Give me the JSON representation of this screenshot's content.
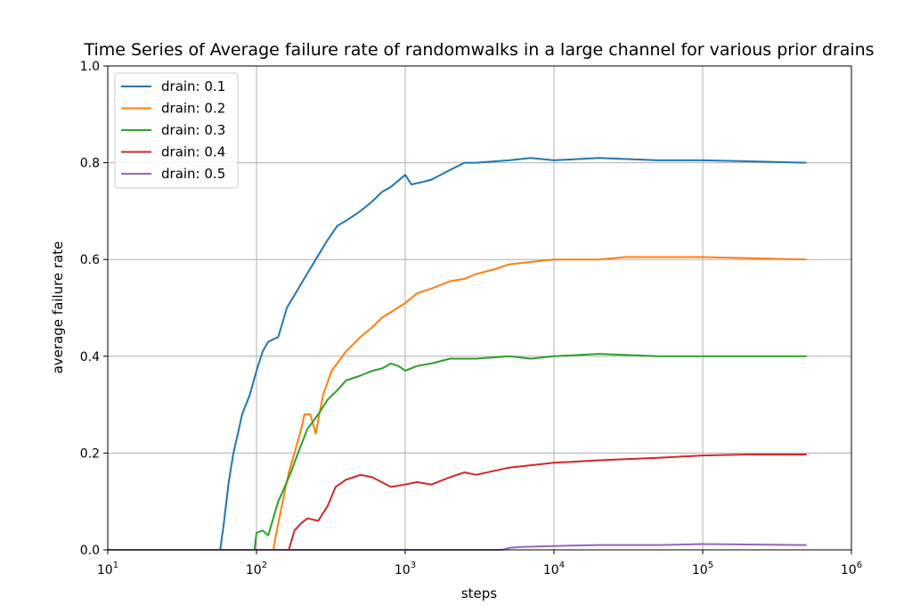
{
  "chart_data": {
    "type": "line",
    "title": "Time Series of Average failure rate of randomwalks in a large channel for various prior drains",
    "xlabel": "steps",
    "ylabel": "average failure rate",
    "xscale": "log",
    "xlim": [
      10,
      1000000
    ],
    "ylim": [
      0.0,
      1.0
    ],
    "grid": true,
    "legend_position": "top-left",
    "x_ticks": [
      {
        "value": 10,
        "base": "10",
        "exp": "1"
      },
      {
        "value": 100,
        "base": "10",
        "exp": "2"
      },
      {
        "value": 1000,
        "base": "10",
        "exp": "3"
      },
      {
        "value": 10000,
        "base": "10",
        "exp": "4"
      },
      {
        "value": 100000,
        "base": "10",
        "exp": "5"
      },
      {
        "value": 1000000,
        "base": "10",
        "exp": "6"
      }
    ],
    "y_ticks": [
      {
        "value": 0.0,
        "label": "0.0"
      },
      {
        "value": 0.2,
        "label": "0.2"
      },
      {
        "value": 0.4,
        "label": "0.4"
      },
      {
        "value": 0.6,
        "label": "0.6"
      },
      {
        "value": 0.8,
        "label": "0.8"
      },
      {
        "value": 1.0,
        "label": "1.0"
      }
    ],
    "series": [
      {
        "name": "drain: 0.1",
        "color": "#1f77b4",
        "points": [
          [
            10,
            0
          ],
          [
            57,
            0
          ],
          [
            60,
            0.05
          ],
          [
            65,
            0.14
          ],
          [
            70,
            0.2
          ],
          [
            75,
            0.24
          ],
          [
            80,
            0.28
          ],
          [
            90,
            0.32
          ],
          [
            100,
            0.37
          ],
          [
            110,
            0.41
          ],
          [
            120,
            0.43
          ],
          [
            140,
            0.44
          ],
          [
            160,
            0.5
          ],
          [
            200,
            0.55
          ],
          [
            250,
            0.6
          ],
          [
            300,
            0.64
          ],
          [
            350,
            0.67
          ],
          [
            400,
            0.68
          ],
          [
            500,
            0.7
          ],
          [
            600,
            0.72
          ],
          [
            700,
            0.74
          ],
          [
            800,
            0.75
          ],
          [
            1000,
            0.775
          ],
          [
            1100,
            0.755
          ],
          [
            1300,
            0.76
          ],
          [
            1500,
            0.765
          ],
          [
            2000,
            0.785
          ],
          [
            2500,
            0.8
          ],
          [
            3000,
            0.8
          ],
          [
            5000,
            0.805
          ],
          [
            7000,
            0.81
          ],
          [
            10000,
            0.805
          ],
          [
            20000,
            0.81
          ],
          [
            50000,
            0.805
          ],
          [
            100000,
            0.805
          ],
          [
            200000,
            0.803
          ],
          [
            500000,
            0.8
          ]
        ]
      },
      {
        "name": "drain: 0.2",
        "color": "#ff7f0e",
        "points": [
          [
            10,
            0
          ],
          [
            130,
            0
          ],
          [
            135,
            0.03
          ],
          [
            150,
            0.1
          ],
          [
            165,
            0.16
          ],
          [
            180,
            0.2
          ],
          [
            200,
            0.25
          ],
          [
            210,
            0.28
          ],
          [
            230,
            0.28
          ],
          [
            250,
            0.24
          ],
          [
            280,
            0.32
          ],
          [
            320,
            0.37
          ],
          [
            400,
            0.41
          ],
          [
            500,
            0.44
          ],
          [
            600,
            0.46
          ],
          [
            700,
            0.48
          ],
          [
            1000,
            0.51
          ],
          [
            1200,
            0.53
          ],
          [
            1500,
            0.54
          ],
          [
            2000,
            0.555
          ],
          [
            2500,
            0.56
          ],
          [
            3000,
            0.57
          ],
          [
            4000,
            0.58
          ],
          [
            5000,
            0.59
          ],
          [
            7000,
            0.595
          ],
          [
            10000,
            0.6
          ],
          [
            20000,
            0.6
          ],
          [
            30000,
            0.605
          ],
          [
            50000,
            0.605
          ],
          [
            100000,
            0.605
          ],
          [
            200000,
            0.603
          ],
          [
            500000,
            0.6
          ]
        ]
      },
      {
        "name": "drain: 0.3",
        "color": "#2ca02c",
        "points": [
          [
            10,
            0
          ],
          [
            97,
            0
          ],
          [
            100,
            0.035
          ],
          [
            110,
            0.04
          ],
          [
            120,
            0.03
          ],
          [
            140,
            0.1
          ],
          [
            150,
            0.12
          ],
          [
            170,
            0.16
          ],
          [
            190,
            0.2
          ],
          [
            220,
            0.25
          ],
          [
            260,
            0.28
          ],
          [
            300,
            0.31
          ],
          [
            350,
            0.33
          ],
          [
            400,
            0.35
          ],
          [
            500,
            0.36
          ],
          [
            600,
            0.37
          ],
          [
            700,
            0.375
          ],
          [
            800,
            0.385
          ],
          [
            900,
            0.38
          ],
          [
            1000,
            0.37
          ],
          [
            1200,
            0.38
          ],
          [
            1500,
            0.385
          ],
          [
            2000,
            0.395
          ],
          [
            3000,
            0.395
          ],
          [
            5000,
            0.4
          ],
          [
            7000,
            0.395
          ],
          [
            10000,
            0.4
          ],
          [
            20000,
            0.405
          ],
          [
            50000,
            0.4
          ],
          [
            100000,
            0.4
          ],
          [
            200000,
            0.4
          ],
          [
            500000,
            0.4
          ]
        ]
      },
      {
        "name": "drain: 0.4",
        "color": "#d62728",
        "points": [
          [
            10,
            0
          ],
          [
            165,
            0
          ],
          [
            180,
            0.04
          ],
          [
            200,
            0.055
          ],
          [
            220,
            0.065
          ],
          [
            260,
            0.06
          ],
          [
            300,
            0.09
          ],
          [
            340,
            0.13
          ],
          [
            400,
            0.145
          ],
          [
            450,
            0.15
          ],
          [
            500,
            0.155
          ],
          [
            600,
            0.15
          ],
          [
            800,
            0.13
          ],
          [
            1000,
            0.135
          ],
          [
            1200,
            0.14
          ],
          [
            1500,
            0.135
          ],
          [
            2000,
            0.15
          ],
          [
            2500,
            0.16
          ],
          [
            3000,
            0.155
          ],
          [
            5000,
            0.17
          ],
          [
            10000,
            0.18
          ],
          [
            20000,
            0.185
          ],
          [
            50000,
            0.19
          ],
          [
            100000,
            0.195
          ],
          [
            200000,
            0.197
          ],
          [
            500000,
            0.197
          ]
        ]
      },
      {
        "name": "drain: 0.5",
        "color": "#9467bd",
        "points": [
          [
            10,
            0
          ],
          [
            4500,
            0
          ],
          [
            5000,
            0.004
          ],
          [
            6000,
            0.006
          ],
          [
            10000,
            0.008
          ],
          [
            20000,
            0.01
          ],
          [
            50000,
            0.01
          ],
          [
            100000,
            0.012
          ],
          [
            200000,
            0.011
          ],
          [
            500000,
            0.01
          ]
        ]
      }
    ]
  }
}
